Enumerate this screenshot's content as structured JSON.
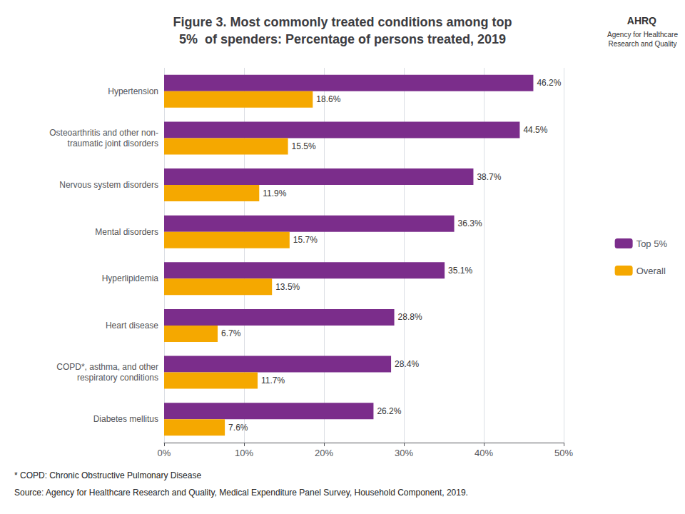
{
  "chart_data": {
    "type": "bar",
    "orientation": "horizontal",
    "title": "Figure 3. Most commonly treated conditions among top\n5%  of spenders: Percentage of persons treated, 2019",
    "categories": [
      "Hypertension",
      "Osteoarthritis and other non-\ntraumatic joint disorders",
      "Nervous system disorders",
      "Mental disorders",
      "Hyperlipidemia",
      "Heart disease",
      "COPD*, asthma, and other\nrespiratory conditions",
      "Diabetes mellitus"
    ],
    "series": [
      {
        "name": "Top 5%",
        "color": "#7b2d8b",
        "values": [
          46.2,
          44.5,
          38.7,
          36.3,
          35.1,
          28.8,
          28.4,
          26.2
        ],
        "value_labels": [
          "46.2%",
          "44.5%",
          "38.7%",
          "36.3%",
          "35.1%",
          "28.8%",
          "28.4%",
          "26.2%"
        ]
      },
      {
        "name": "Overall",
        "color": "#f5a800",
        "values": [
          18.6,
          15.5,
          11.9,
          15.7,
          13.5,
          6.7,
          11.7,
          7.6
        ],
        "value_labels": [
          "18.6%",
          "15.5%",
          "11.9%",
          "15.7%",
          "13.5%",
          "6.7%",
          "11.7%",
          "7.6%"
        ]
      }
    ],
    "xlim": [
      0,
      50
    ],
    "xticks": [
      {
        "value": 0,
        "label": "0%"
      },
      {
        "value": 10,
        "label": "10%"
      },
      {
        "value": 20,
        "label": "20%"
      },
      {
        "value": 30,
        "label": "30%"
      },
      {
        "value": 40,
        "label": "40%"
      },
      {
        "value": 50,
        "label": "50%"
      }
    ],
    "grid": true,
    "legend": "right",
    "data_labels": true,
    "annotations": [
      {
        "text": "AHRQ"
      },
      {
        "text": "Agency for Healthcare\nResearch and Quality"
      },
      {
        "text": "* COPD: Chronic Obstructive Pulmonary Disease"
      },
      {
        "text": "Source: Agency for Healthcare Research and Quality, Medical Expenditure Panel Survey, Household Component, 2019."
      }
    ]
  }
}
